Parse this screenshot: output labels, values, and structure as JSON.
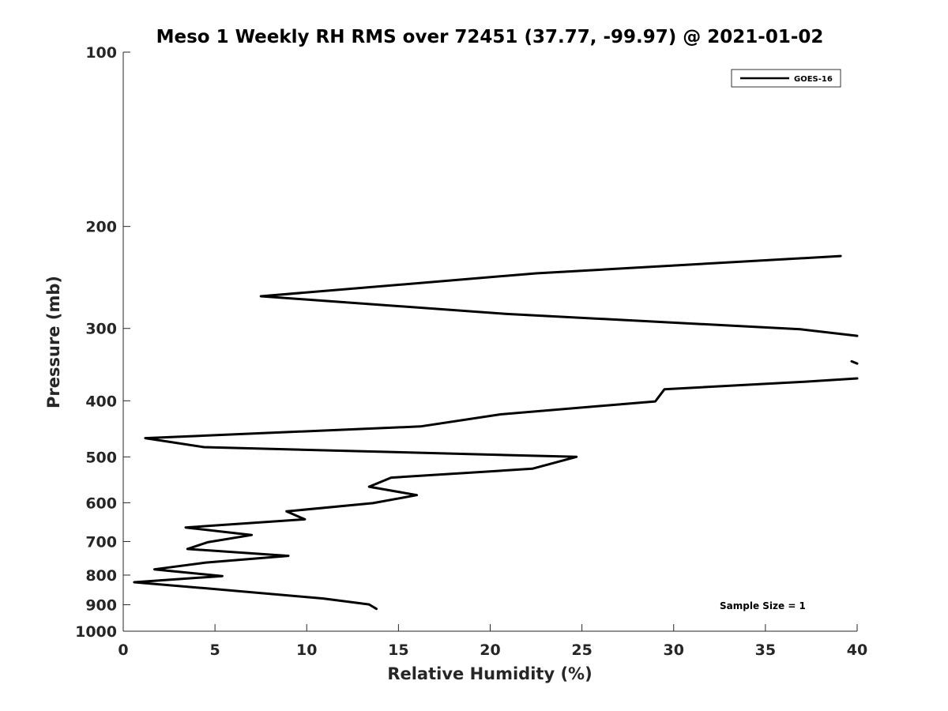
{
  "chart_data": {
    "type": "line",
    "title": "Meso 1 Weekly RH RMS over 72451 (37.77, -99.97) @ 2021-01-02",
    "xlabel": "Relative Humidity (%)",
    "ylabel": "Pressure (mb)",
    "xlim": [
      0,
      40
    ],
    "ylim": [
      100,
      1000
    ],
    "y_scale": "log",
    "y_reversed": true,
    "x_ticks": [
      0,
      5,
      10,
      15,
      20,
      25,
      30,
      35,
      40
    ],
    "y_ticks": [
      100,
      200,
      300,
      400,
      500,
      600,
      700,
      800,
      900,
      1000
    ],
    "grid": false,
    "legend_position": "top-right",
    "series": [
      {
        "name": "GOES-16",
        "color": "#000000",
        "segments": [
          [
            {
              "x": 39.1,
              "p": 225
            },
            {
              "x": 22.5,
              "p": 241
            },
            {
              "x": 7.5,
              "p": 264
            },
            {
              "x": 20.8,
              "p": 283
            },
            {
              "x": 36.9,
              "p": 301
            },
            {
              "x": 40.0,
              "p": 309
            }
          ],
          [
            {
              "x": 39.7,
              "p": 342
            },
            {
              "x": 40.0,
              "p": 345
            }
          ],
          [
            {
              "x": 40.0,
              "p": 366
            },
            {
              "x": 37.0,
              "p": 371
            },
            {
              "x": 29.5,
              "p": 382
            },
            {
              "x": 29.0,
              "p": 401
            },
            {
              "x": 20.6,
              "p": 422
            },
            {
              "x": 16.2,
              "p": 443
            },
            {
              "x": 1.2,
              "p": 464
            },
            {
              "x": 4.4,
              "p": 481
            },
            {
              "x": 24.7,
              "p": 500
            },
            {
              "x": 22.3,
              "p": 524
            },
            {
              "x": 14.6,
              "p": 543
            },
            {
              "x": 13.4,
              "p": 563
            },
            {
              "x": 16.0,
              "p": 582
            },
            {
              "x": 13.6,
              "p": 601
            },
            {
              "x": 8.9,
              "p": 621
            },
            {
              "x": 9.9,
              "p": 641
            },
            {
              "x": 3.4,
              "p": 662
            },
            {
              "x": 7.0,
              "p": 682
            },
            {
              "x": 4.6,
              "p": 702
            },
            {
              "x": 3.5,
              "p": 721
            },
            {
              "x": 9.0,
              "p": 741
            },
            {
              "x": 4.5,
              "p": 761
            },
            {
              "x": 1.7,
              "p": 782
            },
            {
              "x": 5.4,
              "p": 803
            },
            {
              "x": 0.6,
              "p": 823
            },
            {
              "x": 4.3,
              "p": 842
            },
            {
              "x": 10.9,
              "p": 878
            },
            {
              "x": 13.4,
              "p": 899
            },
            {
              "x": 13.8,
              "p": 915
            }
          ]
        ]
      }
    ],
    "annotations": [
      {
        "text": "Sample Size = 1",
        "position": "bottom-right"
      }
    ]
  }
}
